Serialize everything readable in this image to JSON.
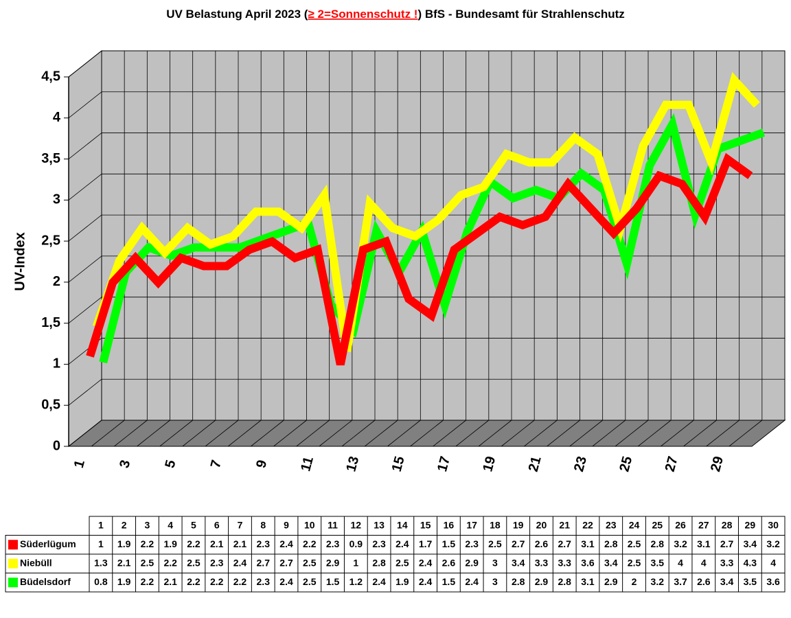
{
  "chart_data": {
    "type": "line",
    "title": [
      "UV Belastung April 2023 (",
      "≥ 2=Sonnenschutz !",
      ") BfS - Bundesamt für Strahlenschutz"
    ],
    "y_label": "UV-Index",
    "categories": [
      "1",
      "2",
      "3",
      "4",
      "5",
      "6",
      "7",
      "8",
      "9",
      "10",
      "11",
      "12",
      "13",
      "14",
      "15",
      "16",
      "17",
      "18",
      "19",
      "20",
      "21",
      "22",
      "23",
      "24",
      "25",
      "26",
      "27",
      "28",
      "29",
      "30"
    ],
    "series": [
      {
        "name": "Süderlügum",
        "color": "#ff0000",
        "values": [
          1,
          1.9,
          2.2,
          1.9,
          2.2,
          2.1,
          2.1,
          2.3,
          2.4,
          2.2,
          2.3,
          0.9,
          2.3,
          2.4,
          1.7,
          1.5,
          2.3,
          2.5,
          2.7,
          2.6,
          2.7,
          3.1,
          2.8,
          2.5,
          2.8,
          3.2,
          3.1,
          2.7,
          3.4,
          3.2
        ]
      },
      {
        "name": "Niebüll",
        "color": "#ffff00",
        "values": [
          1.3,
          2.1,
          2.5,
          2.2,
          2.5,
          2.3,
          2.4,
          2.7,
          2.7,
          2.5,
          2.9,
          1,
          2.8,
          2.5,
          2.4,
          2.6,
          2.9,
          3,
          3.4,
          3.3,
          3.3,
          3.6,
          3.4,
          2.5,
          3.5,
          4,
          4,
          3.3,
          4.3,
          4
        ]
      },
      {
        "name": "Büdelsdorf",
        "color": "#00ff00",
        "values": [
          0.8,
          1.9,
          2.2,
          2.1,
          2.2,
          2.2,
          2.2,
          2.3,
          2.4,
          2.5,
          1.5,
          1.2,
          2.4,
          1.9,
          2.4,
          1.5,
          2.4,
          3,
          2.8,
          2.9,
          2.8,
          3.1,
          2.9,
          2,
          3.2,
          3.7,
          2.6,
          3.4,
          3.5,
          3.6
        ]
      }
    ],
    "ylim": [
      0,
      4.5
    ],
    "yticks": [
      0,
      {
        "value": 0.5,
        "label": "0,5"
      },
      1,
      {
        "value": 1.5,
        "label": "1,5"
      },
      2,
      {
        "value": 2.5,
        "label": "2,5"
      },
      3,
      {
        "value": 3.5,
        "label": "3,5"
      },
      4,
      {
        "value": 4.5,
        "label": "4,5"
      }
    ],
    "grid": true
  }
}
